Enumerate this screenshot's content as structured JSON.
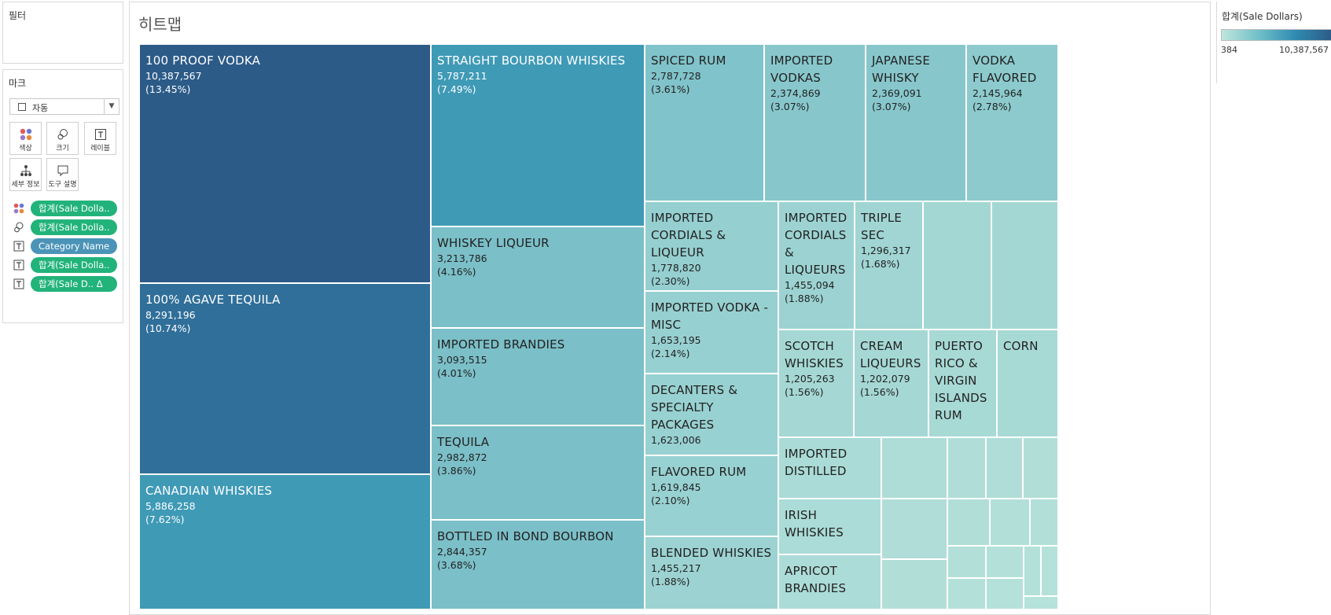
{
  "filters_title": "필터",
  "marks_title": "마크",
  "mark_type": "자동",
  "mark_buttons": {
    "color": "색상",
    "size": "크기",
    "label": "레이블",
    "detail": "세부 정보",
    "tooltip": "도구 설명"
  },
  "pills": [
    {
      "icon": "color-icon",
      "label": "합계(Sale Dolla.."
    },
    {
      "icon": "size-icon",
      "label": "합계(Sale Dolla.."
    },
    {
      "icon": "label-icon",
      "label": "Category Name"
    },
    {
      "icon": "label-icon",
      "label": "합계(Sale Dolla.."
    },
    {
      "icon": "label-icon",
      "label": "합계(Sale D..  Δ"
    }
  ],
  "sheet_title": "히트맵",
  "legend": {
    "title": "합계(Sale Dollars)",
    "min": "384",
    "max": "10,387,567"
  },
  "colors": {
    "darkest": "#2c5b88",
    "dark": "#306f99",
    "medium": "#3f9ab6",
    "light": "#7bbfc8",
    "lighter": "#8ccacd",
    "lightest": "#b2e2d6",
    "pill_green": "#22b37a",
    "pill_blue": "#4b94b8"
  },
  "chart_data": {
    "type": "heatmap",
    "items": [
      {
        "name": "100 PROOF VODKA",
        "value": "10,387,567",
        "pct": "(13.45%)"
      },
      {
        "name": "100% AGAVE TEQUILA",
        "value": "8,291,196",
        "pct": "(10.74%)"
      },
      {
        "name": "CANADIAN WHISKIES",
        "value": "5,886,258",
        "pct": "(7.62%)"
      },
      {
        "name": "STRAIGHT BOURBON WHISKIES",
        "value": "5,787,211",
        "pct": "(7.49%)"
      },
      {
        "name": "WHISKEY LIQUEUR",
        "value": "3,213,786",
        "pct": "(4.16%)"
      },
      {
        "name": "IMPORTED BRANDIES",
        "value": "3,093,515",
        "pct": "(4.01%)"
      },
      {
        "name": "TEQUILA",
        "value": "2,982,872",
        "pct": "(3.86%)"
      },
      {
        "name": "BOTTLED IN BOND BOURBON",
        "value": "2,844,357",
        "pct": "(3.68%)"
      },
      {
        "name": "SPICED RUM",
        "value": "2,787,728",
        "pct": "(3.61%)"
      },
      {
        "name": "IMPORTED VODKAS",
        "value": "2,374,869",
        "pct": "(3.07%)"
      },
      {
        "name": "JAPANESE WHISKY",
        "value": "2,369,091",
        "pct": "(3.07%)"
      },
      {
        "name": "VODKA FLAVORED",
        "value": "2,145,964",
        "pct": "(2.78%)"
      },
      {
        "name": "IMPORTED CORDIALS & LIQUEUR",
        "value": "1,778,820",
        "pct": "(2.30%)"
      },
      {
        "name": "IMPORTED CORDIALS & LIQUEURS",
        "value": "1,455,094",
        "pct": "(1.88%)"
      },
      {
        "name": "TRIPLE SEC",
        "value": "1,296,317",
        "pct": "(1.68%)"
      },
      {
        "name": "IMPORTED VODKA - MISC",
        "value": "1,653,195",
        "pct": "(2.14%)"
      },
      {
        "name": "DECANTERS & SPECIALTY PACKAGES",
        "value": "1,623,006",
        "pct": ""
      },
      {
        "name": "FLAVORED RUM",
        "value": "1,619,845",
        "pct": "(2.10%)"
      },
      {
        "name": "BLENDED WHISKIES",
        "value": "1,455,217",
        "pct": "(1.88%)"
      },
      {
        "name": "SCOTCH WHISKIES",
        "value": "1,205,263",
        "pct": "(1.56%)"
      },
      {
        "name": "CREAM LIQUEURS",
        "value": "1,202,079",
        "pct": "(1.56%)"
      },
      {
        "name": "PUERTO RICO & VIRGIN ISLANDS RUM",
        "value": "",
        "pct": ""
      },
      {
        "name": "CORN",
        "value": "",
        "pct": ""
      },
      {
        "name": "IMPORTED DISTILLED",
        "value": "",
        "pct": ""
      },
      {
        "name": "IRISH WHISKIES",
        "value": "",
        "pct": ""
      },
      {
        "name": "APRICOT BRANDIES",
        "value": "",
        "pct": ""
      }
    ]
  }
}
